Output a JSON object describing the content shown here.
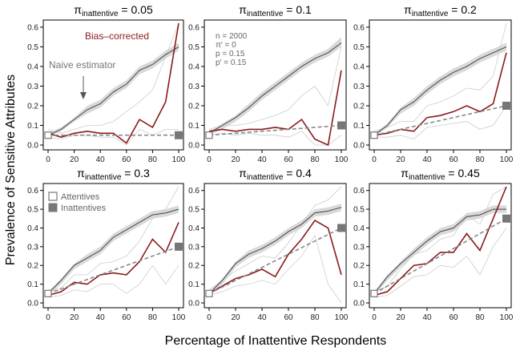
{
  "figure": {
    "xlabel": "Percentage of Inattentive Respondents",
    "ylabel": "Prevalence of Sensitive Attributes"
  },
  "legend": {
    "attentives": "Attentives",
    "inattentives": "Inattentives"
  },
  "annotations": {
    "bias_corrected": "Bias–corrected",
    "naive_estimator": "Naive estimator",
    "params": [
      "n = 2000",
      "π′ = 0",
      "p = 0.15",
      "p′ = 0.15"
    ]
  },
  "colors": {
    "naive": "#444444",
    "band": "#d9d9d9",
    "corrected": "#8b1a1a",
    "thin": "#cccccc",
    "dashed": "#888888",
    "marker": "#777777"
  },
  "chart_data": [
    {
      "type": "line",
      "title_base": "π",
      "title_sub": "inattentive",
      "title_val": " = 0.05",
      "x": [
        0,
        10,
        20,
        30,
        40,
        50,
        60,
        70,
        80,
        90,
        100
      ],
      "ylim": [
        0,
        0.62
      ],
      "xlim": [
        0,
        100
      ],
      "yticks": [
        "0.0",
        "0.1",
        "0.2",
        "0.3",
        "0.4",
        "0.5",
        "0.6"
      ],
      "xticks": [
        "0",
        "20",
        "40",
        "60",
        "80",
        "100"
      ],
      "series": [
        {
          "role": "naive",
          "values": [
            0.05,
            0.08,
            0.13,
            0.18,
            0.21,
            0.27,
            0.31,
            0.38,
            0.41,
            0.46,
            0.5
          ]
        },
        {
          "role": "corrected",
          "values": [
            0.06,
            0.04,
            0.06,
            0.07,
            0.06,
            0.06,
            0.01,
            0.13,
            0.09,
            0.22,
            0.62
          ]
        },
        {
          "role": "dashed",
          "values": [
            0.05,
            0.05,
            0.05,
            0.05,
            0.05,
            0.05,
            0.05,
            0.05,
            0.05,
            0.05,
            0.05
          ]
        }
      ],
      "band": {
        "lower": [
          0.04,
          0.07,
          0.12,
          0.16,
          0.19,
          0.25,
          0.29,
          0.36,
          0.39,
          0.44,
          0.48
        ],
        "upper": [
          0.06,
          0.09,
          0.14,
          0.2,
          0.23,
          0.29,
          0.33,
          0.4,
          0.43,
          0.48,
          0.52
        ]
      },
      "thin_lower": [
        0.04,
        0.03,
        0.05,
        0.05,
        0.04,
        0.04,
        0.0,
        0.08,
        0.05,
        0.08,
        0.08
      ],
      "thin_upper": [
        0.08,
        0.06,
        0.08,
        0.1,
        0.1,
        0.12,
        0.17,
        0.22,
        0.28,
        0.45,
        0.62
      ],
      "attentive": 0.05,
      "inattentive": 0.05
    },
    {
      "type": "line",
      "title_base": "π",
      "title_sub": "inattentive",
      "title_val": " = 0.1",
      "x": [
        0,
        10,
        20,
        30,
        40,
        50,
        60,
        70,
        80,
        90,
        100
      ],
      "ylim": [
        0,
        0.62
      ],
      "xlim": [
        0,
        100
      ],
      "yticks": [
        "0.0",
        "0.1",
        "0.2",
        "0.3",
        "0.4",
        "0.5",
        "0.6"
      ],
      "xticks": [
        "0",
        "20",
        "40",
        "60",
        "80",
        "100"
      ],
      "series": [
        {
          "role": "naive",
          "values": [
            0.06,
            0.1,
            0.14,
            0.19,
            0.25,
            0.3,
            0.35,
            0.4,
            0.44,
            0.47,
            0.52
          ]
        },
        {
          "role": "corrected",
          "values": [
            0.07,
            0.08,
            0.07,
            0.08,
            0.08,
            0.09,
            0.08,
            0.13,
            0.03,
            0.0,
            0.38
          ]
        },
        {
          "role": "dashed",
          "values": [
            0.05,
            0.055,
            0.06,
            0.065,
            0.07,
            0.075,
            0.08,
            0.085,
            0.09,
            0.095,
            0.1
          ]
        }
      ],
      "band": {
        "lower": [
          0.05,
          0.08,
          0.12,
          0.17,
          0.23,
          0.28,
          0.33,
          0.38,
          0.42,
          0.45,
          0.5
        ],
        "upper": [
          0.07,
          0.11,
          0.15,
          0.21,
          0.27,
          0.32,
          0.37,
          0.42,
          0.46,
          0.49,
          0.55
        ]
      },
      "thin_lower": [
        0.05,
        0.06,
        0.05,
        0.06,
        0.05,
        0.05,
        0.04,
        0.07,
        0.0,
        0.0,
        0.05
      ],
      "thin_upper": [
        0.08,
        0.1,
        0.1,
        0.11,
        0.13,
        0.15,
        0.18,
        0.25,
        0.3,
        0.2,
        0.5
      ],
      "attentive": 0.05,
      "inattentive": 0.1
    },
    {
      "type": "line",
      "title_base": "π",
      "title_sub": "inattentive",
      "title_val": " = 0.2",
      "x": [
        0,
        10,
        20,
        30,
        40,
        50,
        60,
        70,
        80,
        90,
        100
      ],
      "ylim": [
        0,
        0.62
      ],
      "xlim": [
        0,
        100
      ],
      "yticks": [
        "0.0",
        "0.1",
        "0.2",
        "0.3",
        "0.4",
        "0.5",
        "0.6"
      ],
      "xticks": [
        "0",
        "20",
        "40",
        "60",
        "80",
        "100"
      ],
      "series": [
        {
          "role": "naive",
          "values": [
            0.05,
            0.1,
            0.18,
            0.22,
            0.28,
            0.33,
            0.37,
            0.4,
            0.44,
            0.47,
            0.5
          ]
        },
        {
          "role": "corrected",
          "values": [
            0.05,
            0.06,
            0.08,
            0.07,
            0.14,
            0.15,
            0.17,
            0.2,
            0.17,
            0.21,
            0.47
          ]
        },
        {
          "role": "dashed",
          "values": [
            0.05,
            0.065,
            0.08,
            0.095,
            0.11,
            0.125,
            0.14,
            0.155,
            0.17,
            0.185,
            0.2
          ]
        }
      ],
      "band": {
        "lower": [
          0.04,
          0.09,
          0.16,
          0.2,
          0.26,
          0.31,
          0.35,
          0.38,
          0.42,
          0.45,
          0.48
        ],
        "upper": [
          0.06,
          0.11,
          0.19,
          0.24,
          0.3,
          0.35,
          0.39,
          0.42,
          0.46,
          0.49,
          0.52
        ]
      },
      "thin_lower": [
        0.04,
        0.04,
        0.05,
        0.03,
        0.09,
        0.1,
        0.11,
        0.12,
        0.08,
        0.1,
        0.2
      ],
      "thin_upper": [
        0.07,
        0.09,
        0.12,
        0.12,
        0.2,
        0.22,
        0.25,
        0.29,
        0.28,
        0.35,
        0.62
      ],
      "attentive": 0.05,
      "inattentive": 0.2
    },
    {
      "type": "line",
      "title_base": "π",
      "title_sub": "inattentive",
      "title_val": " = 0.3",
      "x": [
        0,
        10,
        20,
        30,
        40,
        50,
        60,
        70,
        80,
        90,
        100
      ],
      "ylim": [
        0,
        0.62
      ],
      "xlim": [
        0,
        100
      ],
      "yticks": [
        "0.0",
        "0.1",
        "0.2",
        "0.3",
        "0.4",
        "0.5",
        "0.6"
      ],
      "xticks": [
        "0",
        "20",
        "40",
        "60",
        "80",
        "100"
      ],
      "series": [
        {
          "role": "naive",
          "values": [
            0.05,
            0.12,
            0.2,
            0.24,
            0.28,
            0.35,
            0.39,
            0.43,
            0.47,
            0.48,
            0.5
          ]
        },
        {
          "role": "corrected",
          "values": [
            0.04,
            0.06,
            0.11,
            0.1,
            0.15,
            0.16,
            0.15,
            0.22,
            0.34,
            0.27,
            0.43
          ]
        },
        {
          "role": "dashed",
          "values": [
            0.05,
            0.075,
            0.1,
            0.125,
            0.15,
            0.175,
            0.2,
            0.225,
            0.25,
            0.275,
            0.3
          ]
        }
      ],
      "band": {
        "lower": [
          0.04,
          0.1,
          0.18,
          0.22,
          0.26,
          0.33,
          0.37,
          0.41,
          0.45,
          0.46,
          0.48
        ],
        "upper": [
          0.06,
          0.13,
          0.21,
          0.26,
          0.3,
          0.37,
          0.41,
          0.45,
          0.49,
          0.5,
          0.52
        ]
      },
      "thin_lower": [
        0.03,
        0.04,
        0.07,
        0.06,
        0.1,
        0.1,
        0.05,
        0.1,
        0.2,
        0.1,
        0.2
      ],
      "thin_upper": [
        0.06,
        0.08,
        0.15,
        0.15,
        0.21,
        0.22,
        0.25,
        0.33,
        0.45,
        0.5,
        0.62
      ],
      "attentive": 0.05,
      "inattentive": 0.3
    },
    {
      "type": "line",
      "title_base": "π",
      "title_sub": "inattentive",
      "title_val": " = 0.4",
      "x": [
        0,
        10,
        20,
        30,
        40,
        50,
        60,
        70,
        80,
        90,
        100
      ],
      "ylim": [
        0,
        0.62
      ],
      "xlim": [
        0,
        100
      ],
      "yticks": [
        "0.0",
        "0.1",
        "0.2",
        "0.3",
        "0.4",
        "0.5",
        "0.6"
      ],
      "xticks": [
        "0",
        "20",
        "40",
        "60",
        "80",
        "100"
      ],
      "series": [
        {
          "role": "naive",
          "values": [
            0.05,
            0.12,
            0.21,
            0.26,
            0.29,
            0.33,
            0.38,
            0.42,
            0.48,
            0.49,
            0.51
          ]
        },
        {
          "role": "corrected",
          "values": [
            0.05,
            0.09,
            0.13,
            0.15,
            0.18,
            0.14,
            0.26,
            0.34,
            0.44,
            0.4,
            0.15
          ]
        },
        {
          "role": "dashed",
          "values": [
            0.05,
            0.085,
            0.12,
            0.155,
            0.19,
            0.225,
            0.26,
            0.295,
            0.33,
            0.365,
            0.4
          ]
        }
      ],
      "band": {
        "lower": [
          0.04,
          0.1,
          0.19,
          0.24,
          0.27,
          0.31,
          0.36,
          0.4,
          0.46,
          0.47,
          0.49
        ],
        "upper": [
          0.06,
          0.13,
          0.22,
          0.28,
          0.31,
          0.35,
          0.4,
          0.44,
          0.5,
          0.51,
          0.53
        ]
      },
      "thin_lower": [
        0.04,
        0.06,
        0.09,
        0.1,
        0.12,
        0.1,
        0.18,
        0.25,
        0.36,
        0.1,
        0.0
      ],
      "thin_upper": [
        0.07,
        0.12,
        0.17,
        0.21,
        0.25,
        0.24,
        0.32,
        0.42,
        0.52,
        0.55,
        0.62
      ],
      "attentive": 0.05,
      "inattentive": 0.4
    },
    {
      "type": "line",
      "title_base": "π",
      "title_sub": "inattentive",
      "title_val": " = 0.45",
      "x": [
        0,
        10,
        20,
        30,
        40,
        50,
        60,
        70,
        80,
        90,
        100
      ],
      "ylim": [
        0,
        0.62
      ],
      "xlim": [
        0,
        100
      ],
      "yticks": [
        "0.0",
        "0.1",
        "0.2",
        "0.3",
        "0.4",
        "0.5",
        "0.6"
      ],
      "xticks": [
        "0",
        "20",
        "40",
        "60",
        "80",
        "100"
      ],
      "series": [
        {
          "role": "naive",
          "values": [
            0.05,
            0.14,
            0.21,
            0.27,
            0.33,
            0.38,
            0.4,
            0.46,
            0.47,
            0.5,
            0.5
          ]
        },
        {
          "role": "corrected",
          "values": [
            0.04,
            0.06,
            0.13,
            0.2,
            0.21,
            0.27,
            0.27,
            0.37,
            0.28,
            0.45,
            0.62
          ]
        },
        {
          "role": "dashed",
          "values": [
            0.05,
            0.09,
            0.13,
            0.17,
            0.21,
            0.25,
            0.29,
            0.33,
            0.37,
            0.41,
            0.45
          ]
        }
      ],
      "band": {
        "lower": [
          0.04,
          0.12,
          0.19,
          0.25,
          0.31,
          0.36,
          0.38,
          0.44,
          0.45,
          0.48,
          0.48
        ],
        "upper": [
          0.06,
          0.15,
          0.22,
          0.29,
          0.35,
          0.4,
          0.42,
          0.48,
          0.49,
          0.52,
          0.52
        ]
      },
      "thin_lower": [
        0.03,
        0.04,
        0.09,
        0.14,
        0.15,
        0.2,
        0.19,
        0.25,
        0.15,
        0.3,
        0.4
      ],
      "thin_upper": [
        0.06,
        0.09,
        0.18,
        0.26,
        0.28,
        0.34,
        0.36,
        0.47,
        0.42,
        0.58,
        0.62
      ],
      "attentive": 0.05,
      "inattentive": 0.45
    }
  ]
}
